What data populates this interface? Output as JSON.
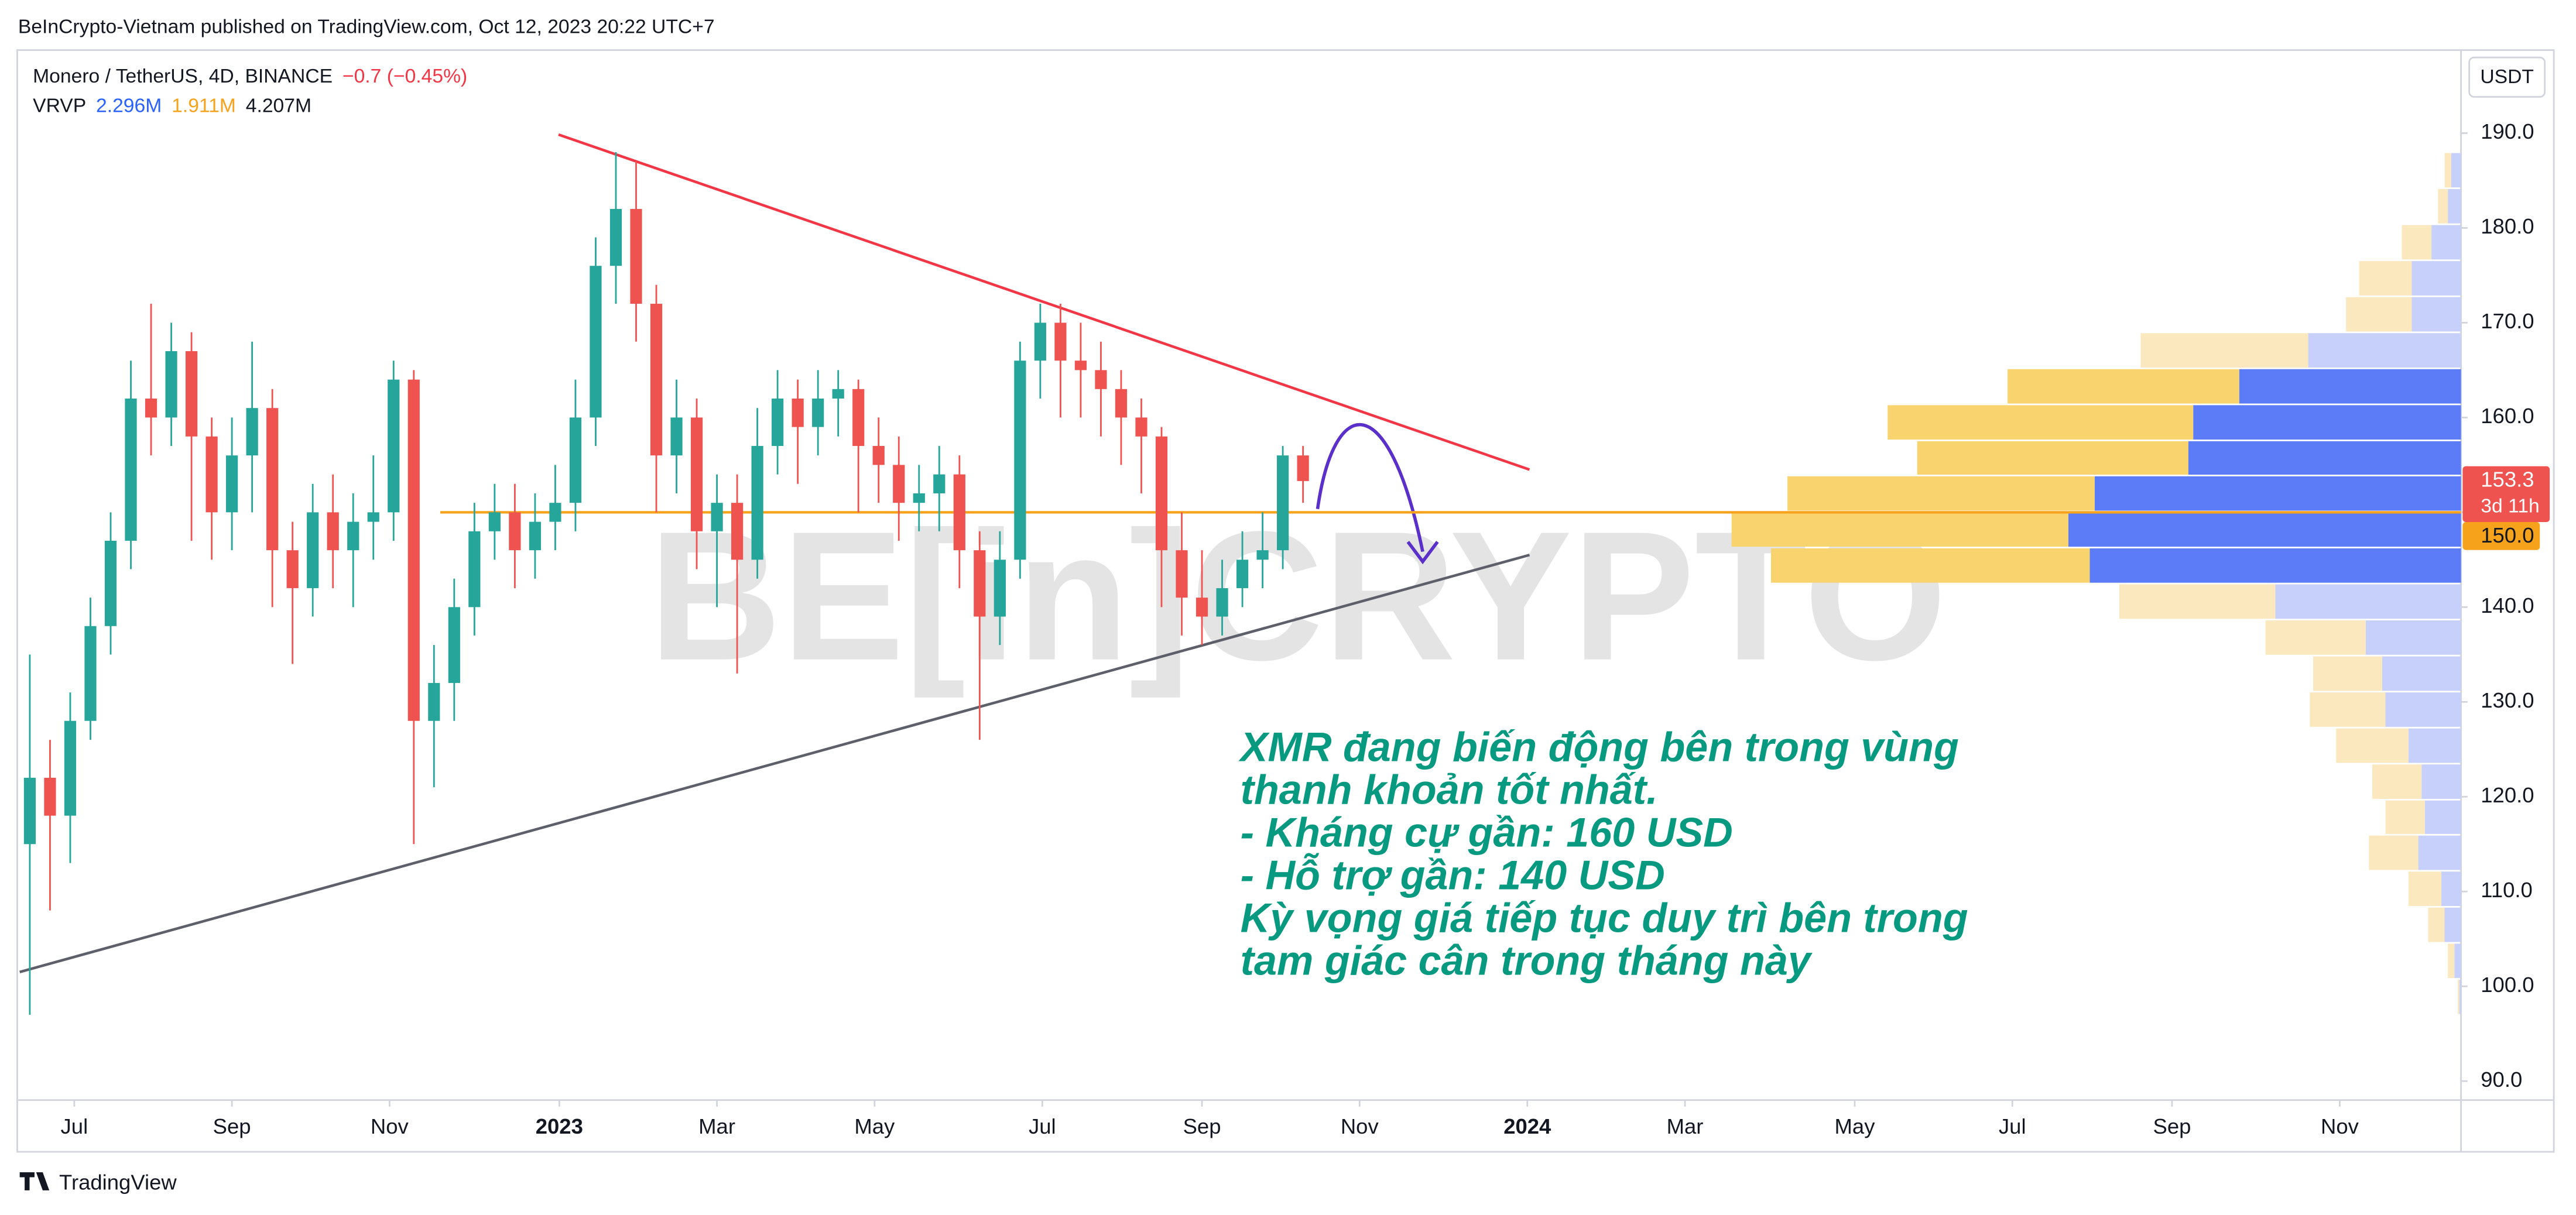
{
  "chart_data": {
    "type": "candlestick",
    "published": "BeInCrypto-Vietnam published on TradingView.com, Oct 12, 2023 20:22 UTC+7",
    "symbol": "Monero / TetherUS, 4D, BINANCE",
    "change": "−0.7 (−0.45%)",
    "indicator": "VRVP",
    "indicator_values": [
      "2.296M",
      "1.911M",
      "4.207M"
    ],
    "currency": "USDT",
    "countdown": "3d 11h",
    "watermark": "BE[in]CRYPTO",
    "footer": "TradingView",
    "annotation": [
      "XMR đang biến động bên trong vùng",
      "thanh khoản tốt nhất.",
      "- Kháng cự gần: 160 USD",
      "- Hỗ trợ gần: 140 USD",
      "Kỳ vọng giá tiếp tục duy trì bên trong",
      "tam giác cân trong tháng này"
    ],
    "up_color": "#26a69a",
    "down_color": "#ef5350",
    "open": [
      115,
      122,
      118,
      128,
      138,
      147,
      162,
      160,
      167,
      158,
      150,
      156,
      161,
      146,
      142,
      150,
      146,
      149,
      150,
      164,
      128,
      132,
      140,
      148,
      150,
      146,
      149,
      151,
      160,
      176,
      182,
      172,
      156,
      160,
      148,
      151,
      145,
      157,
      162,
      159,
      162,
      163,
      157,
      155,
      151,
      152,
      154,
      146,
      139,
      145,
      166,
      170,
      166,
      165,
      163,
      160,
      158,
      146,
      141,
      139,
      142,
      145,
      146,
      156
    ],
    "high": [
      135,
      126,
      131,
      141,
      150,
      166,
      172,
      170,
      169,
      160,
      160,
      168,
      163,
      149,
      153,
      154,
      152,
      156,
      166,
      165,
      136,
      143,
      151,
      153,
      153,
      152,
      155,
      164,
      179,
      188,
      187,
      174,
      164,
      162,
      154,
      154,
      161,
      165,
      164,
      165,
      165,
      164,
      160,
      158,
      155,
      157,
      156,
      148,
      148,
      168,
      172,
      172,
      170,
      168,
      165,
      162,
      159,
      150,
      146,
      145,
      148,
      150,
      157,
      157
    ],
    "low": [
      97,
      108,
      113,
      126,
      135,
      144,
      156,
      157,
      147,
      145,
      146,
      150,
      140,
      134,
      139,
      142,
      140,
      145,
      147,
      115,
      121,
      128,
      137,
      145,
      142,
      143,
      146,
      148,
      157,
      172,
      168,
      150,
      152,
      144,
      140,
      133,
      143,
      154,
      153,
      156,
      158,
      150,
      151,
      147,
      148,
      148,
      142,
      126,
      136,
      143,
      162,
      160,
      160,
      158,
      155,
      152,
      140,
      137,
      136,
      137,
      140,
      142,
      144,
      151
    ],
    "close": [
      122,
      118,
      128,
      138,
      147,
      162,
      160,
      167,
      158,
      150,
      156,
      161,
      146,
      142,
      150,
      146,
      149,
      150,
      164,
      128,
      132,
      140,
      148,
      150,
      146,
      149,
      151,
      160,
      176,
      182,
      172,
      156,
      160,
      148,
      151,
      145,
      157,
      162,
      159,
      162,
      163,
      157,
      155,
      151,
      152,
      154,
      146,
      139,
      145,
      166,
      170,
      166,
      165,
      163,
      160,
      158,
      146,
      141,
      139,
      142,
      145,
      146,
      156,
      153.3
    ],
    "xlim": [
      -0.5,
      120.3
    ],
    "xticks": [
      {
        "value": 2.2,
        "label": "Jul"
      },
      {
        "value": 10.0,
        "label": "Sep"
      },
      {
        "value": 17.8,
        "label": "Nov"
      },
      {
        "value": 26.2,
        "label": "2023"
      },
      {
        "value": 34.0,
        "label": "Mar"
      },
      {
        "value": 41.8,
        "label": "May"
      },
      {
        "value": 50.1,
        "label": "Jul"
      },
      {
        "value": 58.0,
        "label": "Sep"
      },
      {
        "value": 65.8,
        "label": "Nov"
      },
      {
        "value": 74.1,
        "label": "2024"
      },
      {
        "value": 81.9,
        "label": "Mar"
      },
      {
        "value": 90.3,
        "label": "May"
      },
      {
        "value": 98.1,
        "label": "Jul"
      },
      {
        "value": 106.0,
        "label": "Sep"
      },
      {
        "value": 114.3,
        "label": "Nov"
      }
    ],
    "ylim": [
      88,
      198.5
    ],
    "yticks": [
      {
        "value": 90,
        "label": "90.0"
      },
      {
        "value": 100,
        "label": "100.0"
      },
      {
        "value": 110,
        "label": "110.0"
      },
      {
        "value": 120,
        "label": "120.0"
      },
      {
        "value": 130,
        "label": "130.0"
      },
      {
        "value": 140,
        "label": "140.0"
      },
      {
        "value": 150,
        "label": "150.0"
      },
      {
        "value": 160,
        "label": "160.0"
      },
      {
        "value": 170,
        "label": "170.0"
      },
      {
        "value": 180,
        "label": "180.0"
      },
      {
        "value": 190,
        "label": "190.0"
      }
    ],
    "horizontal_line": {
      "value": 150,
      "label": "150.0",
      "color": "#f7a21b"
    },
    "volume_profile": {
      "bins": [
        96.9,
        100.7,
        104.5,
        108.3,
        112.1,
        115.9,
        119.6,
        123.4,
        127.2,
        131.0,
        134.8,
        138.6,
        142.4,
        146.2,
        150.0,
        153.8,
        157.5,
        161.3,
        165.1,
        168.9,
        172.7,
        176.5,
        180.3,
        184.1,
        187.9
      ],
      "up": [
        1,
        4,
        10,
        12,
        26,
        22,
        24,
        32,
        46,
        48,
        58,
        113,
        226,
        239,
        223,
        166,
        163,
        135,
        93,
        30,
        30,
        18,
        8,
        6
      ],
      "down": [
        1,
        4,
        10,
        20,
        30,
        24,
        30,
        44,
        46,
        42,
        61,
        95,
        194,
        205,
        187,
        165,
        186,
        141,
        102,
        40,
        32,
        18,
        6,
        4
      ],
      "value_area": [
        142.4,
        165.1
      ],
      "up_color": "#5b7cf6",
      "up_color_light": "#c6d0fb",
      "down_color": "#f9d36e",
      "down_color_light": "#fce8bf"
    }
  }
}
